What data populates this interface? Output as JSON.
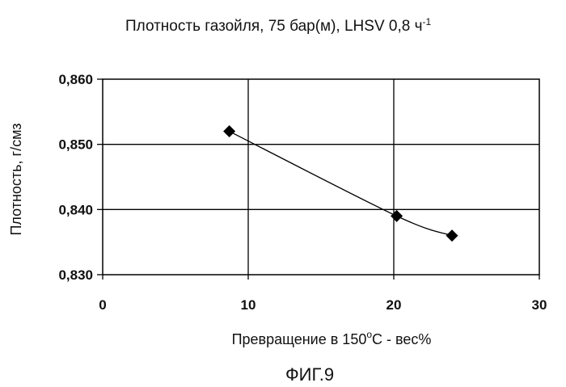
{
  "chart_data": {
    "type": "scatter",
    "title": "Плотность газойля, 75 бар(м), LHSV 0,8 ч",
    "title_superscript": "-1",
    "xlabel": "Превращение в 150",
    "xlabel_superscript": "o",
    "xlabel_tail": "C - вес%",
    "ylabel": "Плотность, г/смз",
    "xlim": [
      0,
      30
    ],
    "ylim": [
      0.83,
      0.86
    ],
    "x_ticks": [
      {
        "value": 0,
        "label": "0"
      },
      {
        "value": 10,
        "label": "10"
      },
      {
        "value": 20,
        "label": "20"
      },
      {
        "value": 30,
        "label": "30"
      }
    ],
    "y_ticks": [
      {
        "value": 0.83,
        "label": "0,830"
      },
      {
        "value": 0.84,
        "label": "0,840"
      },
      {
        "value": 0.85,
        "label": "0,850"
      },
      {
        "value": 0.86,
        "label": "0,860"
      }
    ],
    "grid": true,
    "series": [
      {
        "marker": "diamond",
        "color": "#000000",
        "line": "smooth",
        "points": [
          {
            "x": 8.7,
            "y": 0.852
          },
          {
            "x": 20.2,
            "y": 0.839
          },
          {
            "x": 24,
            "y": 0.836
          }
        ]
      }
    ]
  },
  "figure_label": "ФИГ.9"
}
